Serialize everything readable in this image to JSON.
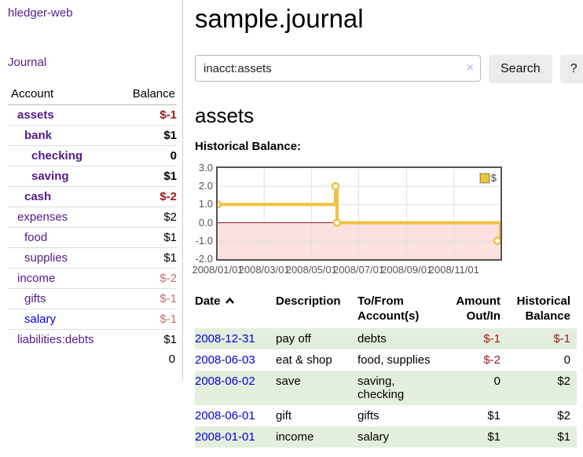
{
  "colors": {
    "purple": "#551a8b",
    "blue": "#0000dd",
    "neg_strong": "#9b1a1a",
    "neg_faded": "#c96f6f",
    "row_green": "#e3efdc",
    "button_bg": "#ececec",
    "chart_line": "#edc240",
    "chart_negative_bg": "#fbe0e0",
    "chart_zero_line": "#8b1a1a",
    "chart_grid": "#e0e0e0",
    "chart_border": "#545454"
  },
  "sidebar": {
    "brand": "hledger-web",
    "journal_link": "Journal",
    "accounts": {
      "header_account": "Account",
      "header_balance": "Balance",
      "rows": [
        {
          "name": "assets",
          "balance": "$-1",
          "level": 1,
          "bold": true,
          "neg": "strong"
        },
        {
          "name": "bank",
          "balance": "$1",
          "level": 2,
          "bold": true,
          "neg": null
        },
        {
          "name": "checking",
          "balance": "0",
          "level": 3,
          "bold": true,
          "neg": null
        },
        {
          "name": "saving",
          "balance": "$1",
          "level": 3,
          "bold": true,
          "neg": null
        },
        {
          "name": "cash",
          "balance": "$-2",
          "level": 2,
          "bold": true,
          "neg": "strong"
        },
        {
          "name": "expenses",
          "balance": "$2",
          "level": 1,
          "bold": false,
          "neg": null
        },
        {
          "name": "food",
          "balance": "$1",
          "level": 2,
          "bold": false,
          "neg": null
        },
        {
          "name": "supplies",
          "balance": "$1",
          "level": 2,
          "bold": false,
          "neg": null
        },
        {
          "name": "income",
          "balance": "$-2",
          "level": 1,
          "bold": false,
          "neg": "faded"
        },
        {
          "name": "gifts",
          "balance": "$-1",
          "level": 2,
          "bold": false,
          "neg": "faded"
        },
        {
          "name": "salary",
          "balance": "$-1",
          "level": 2,
          "bold": false,
          "neg": "faded",
          "link_color": "blue"
        },
        {
          "name": "liabilities:debts",
          "balance": "$1",
          "level": 1,
          "bold": false,
          "neg": null
        }
      ],
      "total": "0"
    }
  },
  "main": {
    "title": "sample.journal",
    "search": {
      "value": "inacct:assets",
      "clear_icon": "×",
      "button_label": "Search",
      "help_label": "?"
    },
    "account_heading": "assets",
    "chart_label": "Historical Balance:"
  },
  "chart_data": {
    "type": "line",
    "step": true,
    "title": "Historical Balance:",
    "series": [
      {
        "name": "$",
        "color": "#edc240",
        "points": [
          [
            "2008-01-01",
            1
          ],
          [
            "2008-06-01",
            2
          ],
          [
            "2008-06-03",
            0
          ],
          [
            "2008-12-31",
            -1
          ]
        ]
      }
    ],
    "x_range": [
      "2008-01-01",
      "2008-12-31"
    ],
    "ylim": [
      -2,
      3
    ],
    "x_ticks": [
      "2008/01/01",
      "2008/03/01",
      "2008/05/01",
      "2008/07/01",
      "2008/09/01",
      "2008/11/01"
    ],
    "y_ticks": [
      3.0,
      2.0,
      1.0,
      0.0,
      -1.0,
      -2.0
    ],
    "grid": true,
    "legend_position": "top-right",
    "legend_label": "$",
    "negative_region": true
  },
  "register": {
    "headers": {
      "date": "Date",
      "description": "Description",
      "tofrom": "To/From Account(s)",
      "amount": "Amount Out/In",
      "balance": "Historical Balance"
    },
    "rows": [
      {
        "date": "2008-12-31",
        "description": "pay off",
        "accounts": "debts",
        "amount": "$-1",
        "amount_neg": true,
        "balance": "$-1",
        "balance_neg": true,
        "shaded": true
      },
      {
        "date": "2008-06-03",
        "description": "eat & shop",
        "accounts": "food, supplies",
        "amount": "$-2",
        "amount_neg": true,
        "balance": "0",
        "balance_neg": false,
        "shaded": false
      },
      {
        "date": "2008-06-02",
        "description": "save",
        "accounts": "saving, checking",
        "amount": "0",
        "amount_neg": false,
        "balance": "$2",
        "balance_neg": false,
        "shaded": true
      },
      {
        "date": "2008-06-01",
        "description": "gift",
        "accounts": "gifts",
        "amount": "$1",
        "amount_neg": false,
        "balance": "$2",
        "balance_neg": false,
        "shaded": false
      },
      {
        "date": "2008-01-01",
        "description": "income",
        "accounts": "salary",
        "amount": "$1",
        "amount_neg": false,
        "balance": "$1",
        "balance_neg": false,
        "shaded": true
      }
    ]
  }
}
